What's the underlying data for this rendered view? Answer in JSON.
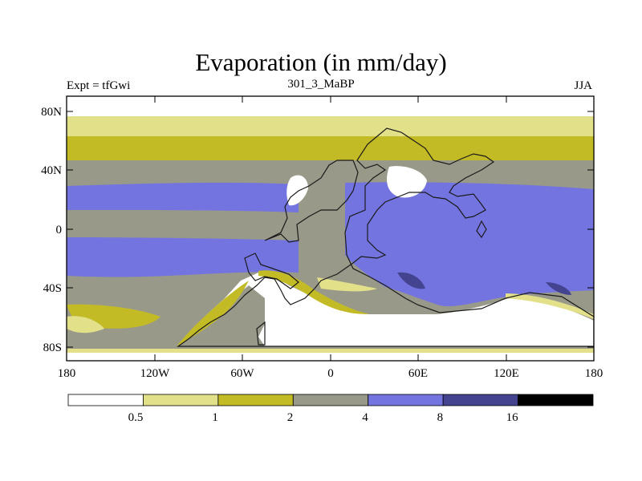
{
  "title": "Evaporation (in mm/day)",
  "subtitle_left": "Expt = tfGwi",
  "subtitle_center": "301_3_MaBP",
  "subtitle_right": "JJA",
  "lat_ticks": [
    "80N",
    "40N",
    "0",
    "40S",
    "80S"
  ],
  "lon_ticks": [
    "180",
    "120W",
    "60W",
    "0",
    "60E",
    "120E",
    "180"
  ],
  "colorbar": {
    "boundary_labels": [
      "0.5",
      "1",
      "2",
      "4",
      "8",
      "16"
    ],
    "colors": [
      "#ffffff",
      "#e3e08a",
      "#c3bb25",
      "#99998a",
      "#7474e0",
      "#43438f",
      "#000000"
    ]
  }
}
